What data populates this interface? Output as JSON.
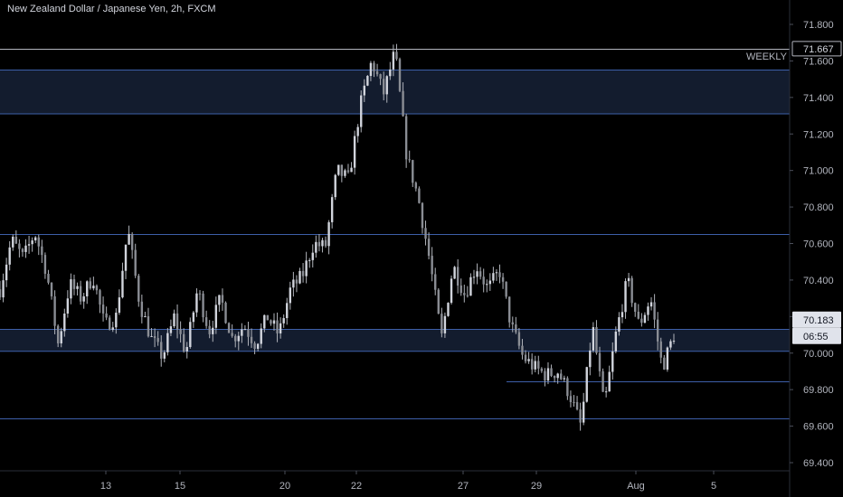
{
  "chart_data": {
    "type": "candlestick",
    "title": "New Zealand Dollar / Japanese Yen, 2h, FXCM",
    "ylim": [
      69.35,
      71.88
    ],
    "y_ticks": [
      "71.800",
      "71.600",
      "71.400",
      "71.200",
      "71.000",
      "70.800",
      "70.600",
      "70.400",
      "70.200",
      "70.000",
      "69.800",
      "69.600",
      "69.400"
    ],
    "x_ticks": [
      "13",
      "15",
      "20",
      "22",
      "27",
      "29",
      "Aug",
      "5"
    ],
    "zones": [
      {
        "name": "weekly-zone",
        "from": 71.31,
        "to": 71.55
      },
      {
        "name": "lower-zone",
        "from": 70.01,
        "to": 70.13
      }
    ],
    "levels": [
      {
        "name": "weekly-high-line",
        "value": 71.667
      },
      {
        "name": "resistance-line",
        "value": 70.65
      },
      {
        "name": "support-line-1",
        "value": 69.845
      },
      {
        "name": "support-line-2",
        "value": 69.64
      }
    ],
    "zone_label": "WEEKLY",
    "price_tags": [
      {
        "name": "high-price-tag",
        "value": 71.667,
        "text": "71.667",
        "style": "outline"
      },
      {
        "name": "last-price-tag",
        "value": 70.183,
        "text": "70.183",
        "style": "filled"
      },
      {
        "name": "countdown-tag",
        "value": 70.085,
        "text": "06:55",
        "style": "filled"
      }
    ],
    "path": [
      70.35,
      70.62,
      70.52,
      70.66,
      70.45,
      70.05,
      70.38,
      70.3,
      70.42,
      70.15,
      70.2,
      70.68,
      70.28,
      70.08,
      69.98,
      70.2,
      70.0,
      70.35,
      70.12,
      70.3,
      70.08,
      70.15,
      70.05,
      70.2,
      70.1,
      70.35,
      70.42,
      70.6,
      70.58,
      71.0,
      70.95,
      71.35,
      71.6,
      71.42,
      71.65,
      71.08,
      70.85,
      70.5,
      70.08,
      70.48,
      70.32,
      70.48,
      70.35,
      70.45,
      70.15,
      69.98,
      69.92,
      69.88,
      69.9,
      69.78,
      69.6,
      70.15,
      69.7,
      70.1,
      70.4,
      70.15,
      70.3,
      69.92,
      70.1
    ],
    "path_x": {
      "start": 0,
      "end": 745
    },
    "bars": 210,
    "x_pixel_ticks": [
      117,
      199,
      315,
      394,
      512,
      593,
      703,
      789
    ]
  }
}
